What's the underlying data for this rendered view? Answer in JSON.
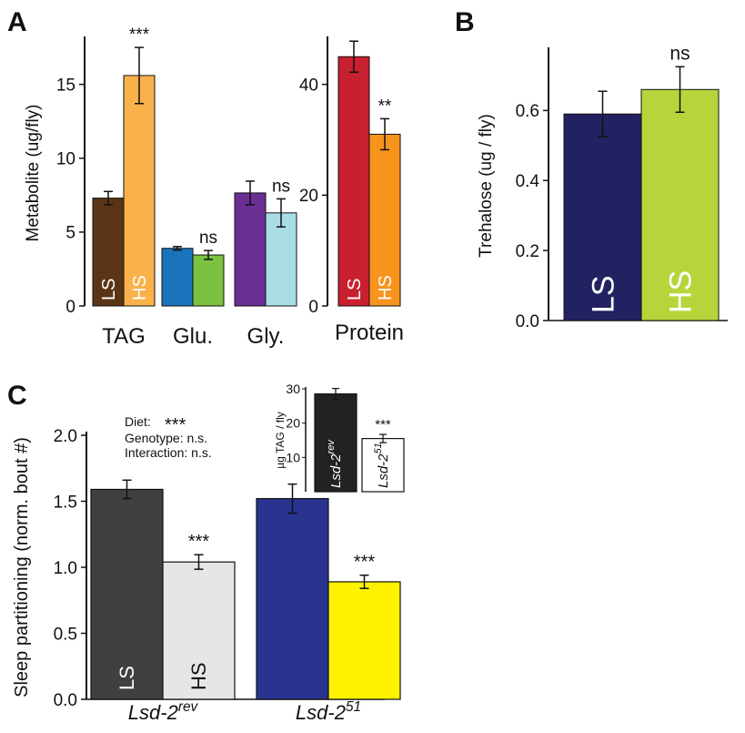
{
  "panels": [
    {
      "letter": "A"
    },
    {
      "letter": "B"
    },
    {
      "letter": "C"
    }
  ],
  "chart_data": [
    {
      "id": "a1",
      "type": "bar",
      "ylabel": "Metabolite (ug/fly)",
      "ylim": [
        0,
        18
      ],
      "yticks": [
        0,
        5,
        10,
        15
      ],
      "groups": [
        {
          "label": "TAG",
          "bars": [
            {
              "label": "LS",
              "value": 7.3,
              "err": 0.45,
              "color": "#5a3515"
            },
            {
              "label": "HS",
              "value": 15.6,
              "err": 1.9,
              "color": "#f9b14a"
            }
          ],
          "sig": "***"
        },
        {
          "label": "Glu.",
          "bars": [
            {
              "value": 3.9,
              "err": 0.12,
              "color": "#1a73bb"
            },
            {
              "value": 3.45,
              "err": 0.3,
              "color": "#7cc242"
            }
          ],
          "sig": "ns"
        },
        {
          "label": "Gly.",
          "bars": [
            {
              "value": 7.65,
              "err": 0.8,
              "color": "#6a2f93"
            },
            {
              "value": 6.3,
              "err": 0.95,
              "color": "#a9dde5"
            }
          ],
          "sig": "ns"
        }
      ]
    },
    {
      "id": "a2",
      "type": "bar",
      "ylim": [
        0,
        48
      ],
      "yticks": [
        0,
        20,
        40
      ],
      "groups": [
        {
          "label": "Protein",
          "bars": [
            {
              "label": "LS",
              "value": 45,
              "err": 2.8,
              "color": "#c8202f"
            },
            {
              "label": "HS",
              "value": 31,
              "err": 2.8,
              "color": "#f7941d"
            }
          ],
          "sig": "**"
        }
      ]
    },
    {
      "id": "b",
      "type": "bar",
      "ylabel": "Trehalose (ug / fly)",
      "ylim": [
        0,
        0.77
      ],
      "yticks": [
        0.0,
        0.2,
        0.4,
        0.6
      ],
      "groups": [
        {
          "label": "",
          "bars": [
            {
              "label": "LS",
              "value": 0.59,
              "err": 0.065,
              "color": "#222262"
            },
            {
              "label": "HS",
              "value": 0.66,
              "err": 0.065,
              "color": "#b7d53b"
            }
          ],
          "sig": "ns"
        }
      ]
    },
    {
      "id": "c",
      "type": "bar",
      "ylabel": "Sleep partitioning (norm. bout #)",
      "ylim": [
        0,
        2.0
      ],
      "yticks": [
        0.0,
        0.5,
        1.0,
        1.5,
        2.0
      ],
      "annotation": {
        "diet_label": "Diet:",
        "diet_sig": "***",
        "genotype": "Genotype: n.s.",
        "interaction": "Interaction: n.s."
      },
      "groups": [
        {
          "label_base": "Lsd-2",
          "label_sup": "rev",
          "bars": [
            {
              "label": "LS",
              "value": 1.59,
              "err": 0.07,
              "color": "#404040"
            },
            {
              "label": "HS",
              "value": 1.04,
              "err": 0.055,
              "color": "#e6e6e6"
            }
          ],
          "sig": "***"
        },
        {
          "label_base": "Lsd-2",
          "label_sup": "51",
          "bars": [
            {
              "value": 1.52,
              "err": 0.11,
              "color": "#2b3390"
            },
            {
              "value": 0.89,
              "err": 0.05,
              "color": "#fff200"
            }
          ],
          "sig": "***"
        }
      ]
    },
    {
      "id": "c_inset",
      "type": "bar",
      "ylabel": "µg TAG / fly",
      "ylim": [
        0,
        30
      ],
      "yticks": [
        10,
        20,
        30
      ],
      "bars": [
        {
          "label_base": "Lsd-2",
          "label_sup": "rev",
          "value": 28.5,
          "err": 1.6,
          "color": "#222222"
        },
        {
          "label_base": "Lsd-2",
          "label_sup": "51",
          "value": 15.5,
          "err": 1.2,
          "color": "#ffffff"
        }
      ],
      "sig": "***"
    }
  ]
}
